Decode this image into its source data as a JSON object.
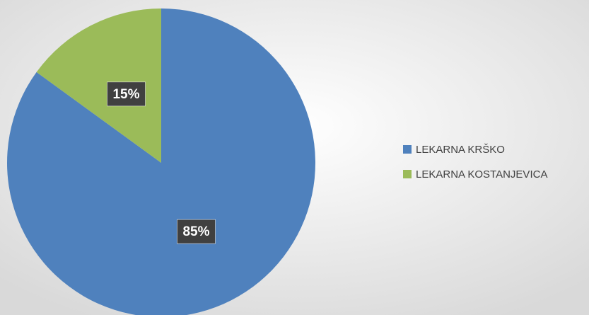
{
  "chart_data": {
    "type": "pie",
    "categories": [
      "LEKARNA KRŠKO",
      "LEKARNA KOSTANJEVICA"
    ],
    "values": [
      85,
      15
    ],
    "value_labels": [
      "85%",
      "15%"
    ],
    "colors": [
      "#4f81bd",
      "#9bbb59"
    ],
    "legend": "right"
  }
}
